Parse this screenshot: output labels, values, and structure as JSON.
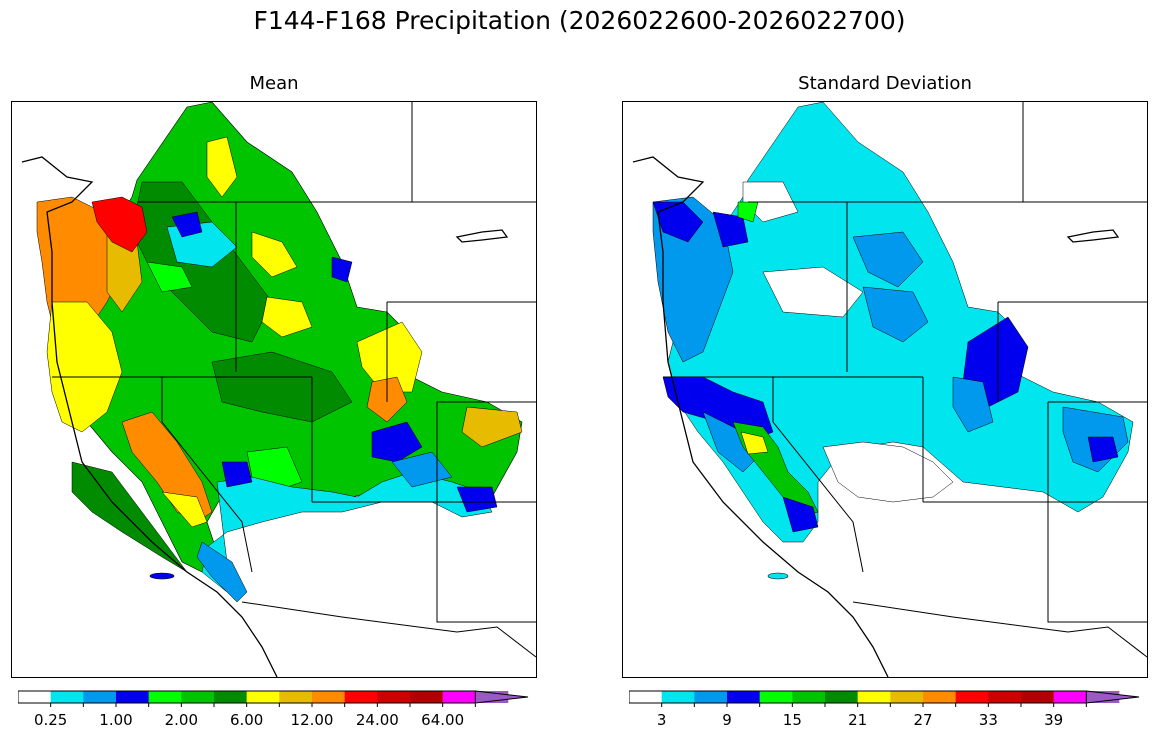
{
  "figure": {
    "title": "F144-F168 Precipitation (2026022600-2026022700)"
  },
  "panels": [
    {
      "title": "Mean",
      "colorbar": {
        "colors": [
          "#ffffff",
          "#00e5ee",
          "#0099ee",
          "#0000ee",
          "#00ff00",
          "#00c400",
          "#008b00",
          "#ffff00",
          "#e6bb00",
          "#ff8c00",
          "#ff0000",
          "#cd0000",
          "#b20000",
          "#ff00ff",
          "#9b59c8"
        ],
        "tick_labels": [
          "0.25",
          "1.00",
          "2.00",
          "6.00",
          "12.00",
          "24.00",
          "64.00"
        ],
        "extend": "max"
      }
    },
    {
      "title": "Standard Deviation",
      "colorbar": {
        "colors": [
          "#ffffff",
          "#00e5ee",
          "#0099ee",
          "#0000ee",
          "#00ff00",
          "#00c400",
          "#008b00",
          "#ffff00",
          "#e6bb00",
          "#ff8c00",
          "#ff0000",
          "#cd0000",
          "#b20000",
          "#ff00ff",
          "#9b59c8"
        ],
        "tick_labels": [
          "3",
          "9",
          "15",
          "21",
          "27",
          "33",
          "39"
        ],
        "extend": "max"
      }
    }
  ]
}
